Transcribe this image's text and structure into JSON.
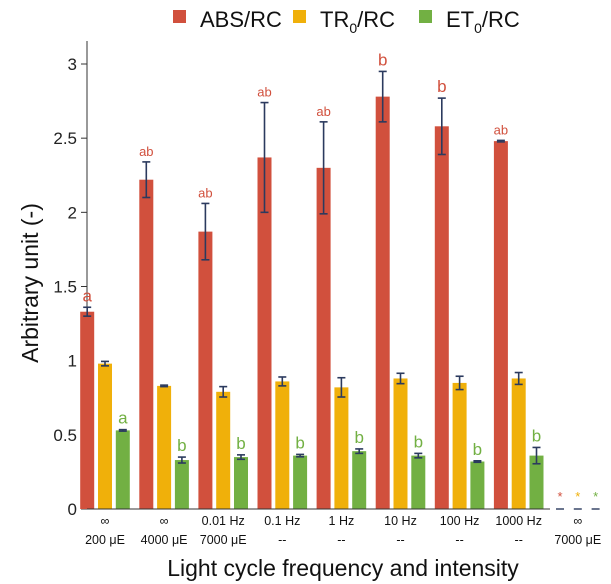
{
  "colors": {
    "abs": "#d1503d",
    "tr": "#f0b00a",
    "et": "#72b043",
    "err": "#2b3a5e"
  },
  "legend": [
    {
      "label": "ABS/RC",
      "sub": "",
      "tail": ""
    },
    {
      "label": "TR",
      "sub": "0",
      "tail": "/RC"
    },
    {
      "label": "ET",
      "sub": "0",
      "tail": "/RC"
    }
  ],
  "chart_data": {
    "type": "bar",
    "xlabel": "Light cycle frequency and intensity",
    "ylabel": "Arbitrary unit (-)",
    "ylim": [
      0,
      3.15
    ],
    "yticks": [
      "0",
      "0.5",
      "1",
      "1.5",
      "2",
      "2.5",
      "3"
    ],
    "ytick_values": [
      0,
      0.5,
      1,
      1.5,
      2,
      2.5,
      3
    ],
    "legend_position": "top",
    "categories": [
      {
        "line1": "∞",
        "line2": "200 μE"
      },
      {
        "line1": "∞",
        "line2": "4000 μE"
      },
      {
        "line1": "0.01 Hz",
        "line2": "7000 μE"
      },
      {
        "line1": "0.1 Hz",
        "line2": "--"
      },
      {
        "line1": "1 Hz",
        "line2": "--"
      },
      {
        "line1": "10 Hz",
        "line2": "--"
      },
      {
        "line1": "100 Hz",
        "line2": "--"
      },
      {
        "line1": "1000 Hz",
        "line2": "--"
      },
      {
        "line1": "∞",
        "line2": "7000 μE"
      }
    ],
    "series": [
      {
        "name": "ABS/RC",
        "values": [
          1.33,
          2.22,
          1.87,
          2.37,
          2.3,
          2.78,
          2.58,
          2.48,
          0
        ],
        "errors": [
          0.03,
          0.12,
          0.19,
          0.37,
          0.31,
          0.17,
          0.19,
          0.005,
          0
        ],
        "letters": [
          "a",
          "ab",
          "ab",
          "ab",
          "ab",
          "b",
          "b",
          "ab",
          "*"
        ]
      },
      {
        "name": "TR0/RC",
        "values": [
          0.98,
          0.83,
          0.79,
          0.86,
          0.82,
          0.88,
          0.85,
          0.88,
          0
        ],
        "errors": [
          0.015,
          0.005,
          0.035,
          0.03,
          0.065,
          0.035,
          0.045,
          0.04,
          0
        ],
        "letters": [
          "",
          "",
          "",
          "",
          "",
          "",
          "",
          "",
          "*"
        ]
      },
      {
        "name": "ET0/RC",
        "values": [
          0.53,
          0.33,
          0.35,
          0.36,
          0.39,
          0.36,
          0.32,
          0.36,
          0
        ],
        "errors": [
          0.005,
          0.02,
          0.015,
          0.008,
          0.015,
          0.015,
          0.005,
          0.055,
          0
        ],
        "letters": [
          "a",
          "b",
          "b",
          "b",
          "b",
          "b",
          "b",
          "b",
          "*"
        ]
      }
    ]
  }
}
